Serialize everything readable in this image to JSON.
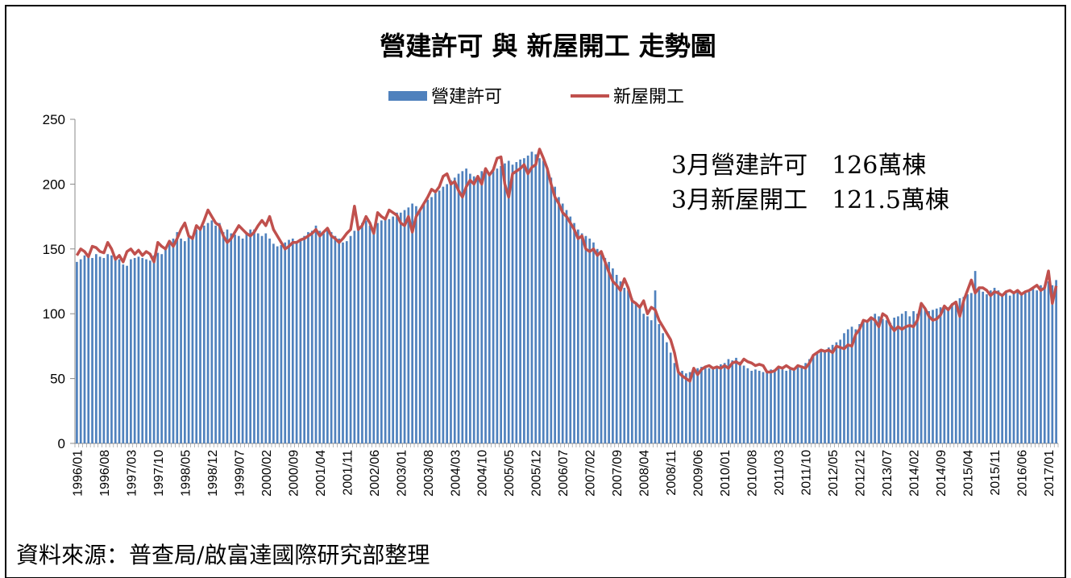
{
  "chart_data": {
    "type": "bar_line",
    "title": "營建許可 與 新屋開工 走勢圖",
    "annotations": [
      {
        "text": "3月營建許可　126萬棟",
        "color": "#4a7fcf"
      },
      {
        "text": "3月新屋開工　121.5萬棟",
        "color": "#c0504d"
      }
    ],
    "source": "資料來源：普查局/啟富達國際研究部整理",
    "legend": "top",
    "ylim": [
      0,
      250
    ],
    "yticks": [
      0,
      50,
      100,
      150,
      200,
      250
    ],
    "categories": [
      "1996/01",
      null,
      null,
      null,
      null,
      null,
      null,
      "1996/08",
      null,
      null,
      null,
      null,
      null,
      null,
      "1997/03",
      null,
      null,
      null,
      null,
      null,
      null,
      "1997/10",
      null,
      null,
      null,
      null,
      null,
      null,
      "1998/05",
      null,
      null,
      null,
      null,
      null,
      null,
      "1998/12",
      null,
      null,
      null,
      null,
      null,
      null,
      "1999/07",
      null,
      null,
      null,
      null,
      null,
      null,
      "2000/02",
      null,
      null,
      null,
      null,
      null,
      null,
      "2000/09",
      null,
      null,
      null,
      null,
      null,
      null,
      "2001/04",
      null,
      null,
      null,
      null,
      null,
      null,
      "2001/11",
      null,
      null,
      null,
      null,
      null,
      null,
      "2002/06",
      null,
      null,
      null,
      null,
      null,
      null,
      "2003/01",
      null,
      null,
      null,
      null,
      null,
      null,
      "2003/08",
      null,
      null,
      null,
      null,
      null,
      null,
      "2004/03",
      null,
      null,
      null,
      null,
      null,
      null,
      "2004/10",
      null,
      null,
      null,
      null,
      null,
      null,
      "2005/05",
      null,
      null,
      null,
      null,
      null,
      null,
      "2005/12",
      null,
      null,
      null,
      null,
      null,
      null,
      "2006/07",
      null,
      null,
      null,
      null,
      null,
      null,
      "2007/02",
      null,
      null,
      null,
      null,
      null,
      null,
      "2007/09",
      null,
      null,
      null,
      null,
      null,
      null,
      "2008/04",
      null,
      null,
      null,
      null,
      null,
      null,
      "2008/11",
      null,
      null,
      null,
      null,
      null,
      null,
      "2009/06",
      null,
      null,
      null,
      null,
      null,
      null,
      "2010/01",
      null,
      null,
      null,
      null,
      null,
      null,
      "2010/08",
      null,
      null,
      null,
      null,
      null,
      null,
      "2011/03",
      null,
      null,
      null,
      null,
      null,
      null,
      "2011/10",
      null,
      null,
      null,
      null,
      null,
      null,
      "2012/05",
      null,
      null,
      null,
      null,
      null,
      null,
      "2012/12",
      null,
      null,
      null,
      null,
      null,
      null,
      "2013/07",
      null,
      null,
      null,
      null,
      null,
      null,
      "2014/02",
      null,
      null,
      null,
      null,
      null,
      null,
      "2014/09",
      null,
      null,
      null,
      null,
      null,
      null,
      "2015/04",
      null,
      null,
      null,
      null,
      null,
      null,
      "2015/11",
      null,
      null,
      null,
      null,
      null,
      null,
      "2016/06",
      null,
      null,
      null,
      null,
      null,
      null,
      "2017/01",
      null,
      null
    ],
    "series": [
      {
        "name": "營建許可",
        "kind": "bar",
        "color": "#4f81bd",
        "values": [
          140,
          142,
          145,
          144,
          143,
          146,
          144,
          143,
          146,
          145,
          143,
          142,
          138,
          137,
          142,
          143,
          144,
          143,
          142,
          141,
          145,
          147,
          146,
          150,
          155,
          158,
          163,
          158,
          156,
          159,
          160,
          165,
          166,
          168,
          170,
          172,
          168,
          170,
          163,
          165,
          162,
          161,
          160,
          158,
          162,
          165,
          165,
          162,
          160,
          162,
          158,
          154,
          152,
          153,
          155,
          157,
          158,
          156,
          157,
          160,
          163,
          164,
          168,
          164,
          162,
          165,
          163,
          160,
          158,
          155,
          156,
          160,
          164,
          165,
          170,
          172,
          168,
          166,
          170,
          172,
          174,
          173,
          175,
          178,
          178,
          180,
          182,
          185,
          183,
          180,
          185,
          188,
          190,
          193,
          195,
          198,
          200,
          203,
          205,
          208,
          210,
          212,
          208,
          206,
          205,
          210,
          212,
          208,
          210,
          212,
          214,
          216,
          218,
          215,
          217,
          219,
          220,
          222,
          225,
          223,
          220,
          218,
          212,
          205,
          198,
          190,
          185,
          180,
          175,
          170,
          165,
          162,
          160,
          158,
          155,
          150,
          148,
          143,
          140,
          135,
          130,
          125,
          120,
          118,
          112,
          108,
          105,
          100,
          98,
          95,
          118,
          92,
          85,
          78,
          70,
          62,
          55,
          56,
          54,
          55,
          57,
          58,
          59,
          59,
          58,
          59,
          60,
          61,
          62,
          65,
          64,
          66,
          63,
          60,
          58,
          56,
          57,
          56,
          55,
          56,
          57,
          56,
          58,
          57,
          56,
          57,
          58,
          59,
          60,
          62,
          65,
          68,
          70,
          72,
          72,
          74,
          76,
          78,
          80,
          85,
          88,
          90,
          88,
          92,
          95,
          94,
          97,
          100,
          98,
          96,
          95,
          93,
          97,
          98,
          100,
          102,
          98,
          102,
          100,
          105,
          104,
          102,
          103,
          104,
          105,
          106,
          105,
          108,
          110,
          112,
          113,
          115,
          116,
          133,
          119,
          117,
          115,
          118,
          120,
          118,
          115,
          116,
          114,
          117,
          118,
          115,
          116,
          117,
          120,
          118,
          122,
          120,
          125,
          122,
          126
        ]
      },
      {
        "name": "新屋開工",
        "kind": "line",
        "color": "#c0504d",
        "values": [
          145,
          150,
          148,
          144,
          152,
          151,
          148,
          147,
          155,
          150,
          142,
          145,
          140,
          148,
          150,
          146,
          149,
          145,
          148,
          146,
          140,
          155,
          152,
          150,
          156,
          152,
          158,
          165,
          170,
          160,
          158,
          168,
          165,
          172,
          180,
          175,
          170,
          168,
          160,
          155,
          158,
          163,
          168,
          165,
          162,
          160,
          163,
          168,
          172,
          168,
          175,
          165,
          160,
          155,
          150,
          152,
          155,
          155,
          157,
          158,
          160,
          162,
          165,
          160,
          163,
          166,
          160,
          158,
          155,
          158,
          162,
          165,
          183,
          165,
          168,
          175,
          170,
          162,
          178,
          175,
          173,
          180,
          178,
          176,
          170,
          168,
          175,
          163,
          175,
          180,
          185,
          190,
          196,
          194,
          198,
          206,
          208,
          200,
          202,
          195,
          190,
          198,
          203,
          200,
          206,
          200,
          212,
          207,
          211,
          220,
          221,
          200,
          190,
          208,
          210,
          212,
          215,
          208,
          213,
          215,
          227,
          220,
          212,
          200,
          190,
          185,
          178,
          175,
          170,
          165,
          158,
          160,
          150,
          148,
          150,
          145,
          148,
          140,
          132,
          125,
          122,
          118,
          127,
          120,
          110,
          108,
          105,
          110,
          100,
          105,
          103,
          95,
          90,
          85,
          80,
          70,
          55,
          52,
          50,
          48,
          58,
          53,
          57,
          59,
          60,
          58,
          59,
          58,
          60,
          58,
          62,
          63,
          61,
          65,
          63,
          62,
          60,
          61,
          60,
          55,
          55,
          56,
          59,
          58,
          60,
          58,
          57,
          60,
          59,
          58,
          62,
          68,
          70,
          72,
          71,
          72,
          70,
          75,
          74,
          73,
          76,
          75,
          84,
          88,
          95,
          94,
          97,
          95,
          90,
          100,
          98,
          91,
          87,
          90,
          88,
          90,
          91,
          90,
          95,
          108,
          104,
          98,
          95,
          96,
          99,
          106,
          103,
          107,
          109,
          98,
          110,
          118,
          126,
          116,
          120,
          120,
          118,
          114,
          117,
          116,
          114,
          117,
          118,
          116,
          118,
          115,
          117,
          118,
          120,
          122,
          118,
          120,
          133,
          108,
          121.5
        ]
      }
    ]
  }
}
